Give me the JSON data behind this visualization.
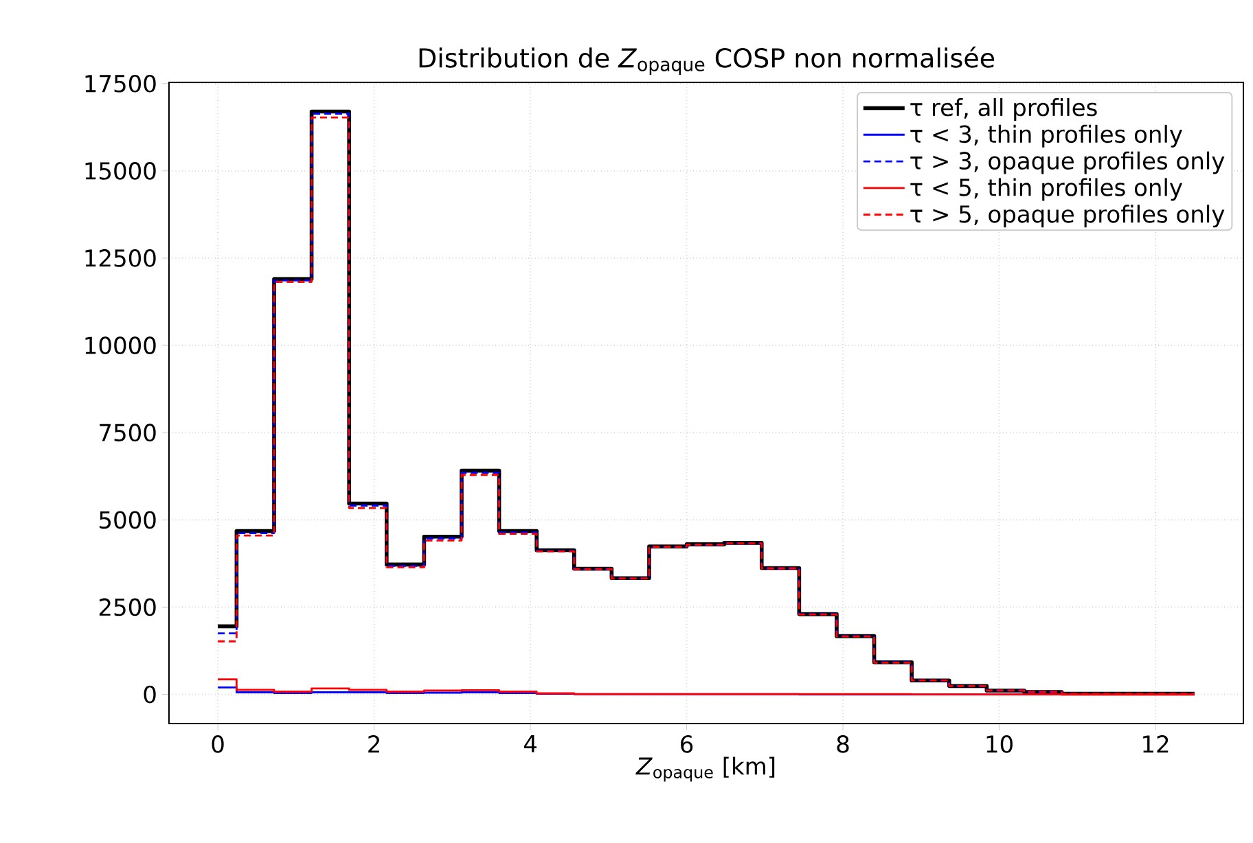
{
  "chart_data": {
    "type": "histogram",
    "title": "Distribution de *Z*$_{opaque}$ COSP non normalisée",
    "xlabel": "*Z*$_{opaque}$ [km]",
    "bins": [
      0,
      0.24,
      0.72,
      1.2,
      1.68,
      2.16,
      2.64,
      3.12,
      3.6,
      4.08,
      4.56,
      5.04,
      5.52,
      6.0,
      6.48,
      6.96,
      7.44,
      7.92,
      8.4,
      8.88,
      9.36,
      9.84,
      10.32,
      10.8,
      12.5
    ],
    "series": [
      {
        "name": "τ ref, all profiles",
        "color": "#000000",
        "line_style": "solid",
        "values": [
          1950,
          4680,
          11900,
          16700,
          5470,
          3720,
          4520,
          6410,
          4680,
          4130,
          3600,
          3330,
          4240,
          4300,
          4340,
          3620,
          2300,
          1670,
          920,
          400,
          240,
          110,
          70,
          20
        ]
      },
      {
        "name": "τ < 3, thin profiles only",
        "color": "#0000ff",
        "line_style": "solid",
        "values": [
          200,
          60,
          40,
          60,
          60,
          40,
          50,
          60,
          40,
          20,
          10,
          10,
          10,
          10,
          10,
          10,
          0,
          0,
          0,
          0,
          0,
          0,
          0,
          0
        ]
      },
      {
        "name": "τ > 3, opaque profiles only",
        "color": "#0000ff",
        "line_style": "dashed",
        "values": [
          1750,
          4620,
          11860,
          16640,
          5410,
          3680,
          4470,
          6350,
          4640,
          4110,
          3590,
          3320,
          4230,
          4290,
          4330,
          3610,
          2300,
          1670,
          920,
          400,
          240,
          110,
          70,
          20
        ]
      },
      {
        "name": "τ < 5, thin profiles only",
        "color": "#ff0000",
        "line_style": "solid",
        "values": [
          430,
          130,
          80,
          170,
          130,
          80,
          110,
          120,
          80,
          30,
          10,
          10,
          10,
          10,
          10,
          10,
          10,
          10,
          10,
          0,
          0,
          0,
          0,
          0
        ]
      },
      {
        "name": "τ > 5, opaque profiles only",
        "color": "#ff0000",
        "line_style": "dashed",
        "values": [
          1520,
          4550,
          11820,
          16530,
          5340,
          3640,
          4410,
          6290,
          4600,
          4100,
          3590,
          3320,
          4230,
          4290,
          4330,
          3610,
          2290,
          1660,
          910,
          400,
          240,
          110,
          70,
          20
        ]
      }
    ],
    "xlim": [
      -0.625,
      13.125
    ],
    "ylim": [
      -835,
      17535
    ],
    "xticks": [
      0,
      2,
      4,
      6,
      8,
      10,
      12
    ],
    "yticks": [
      0,
      2500,
      5000,
      7500,
      10000,
      12500,
      15000,
      17500
    ],
    "grid": true,
    "legend": "top right"
  }
}
